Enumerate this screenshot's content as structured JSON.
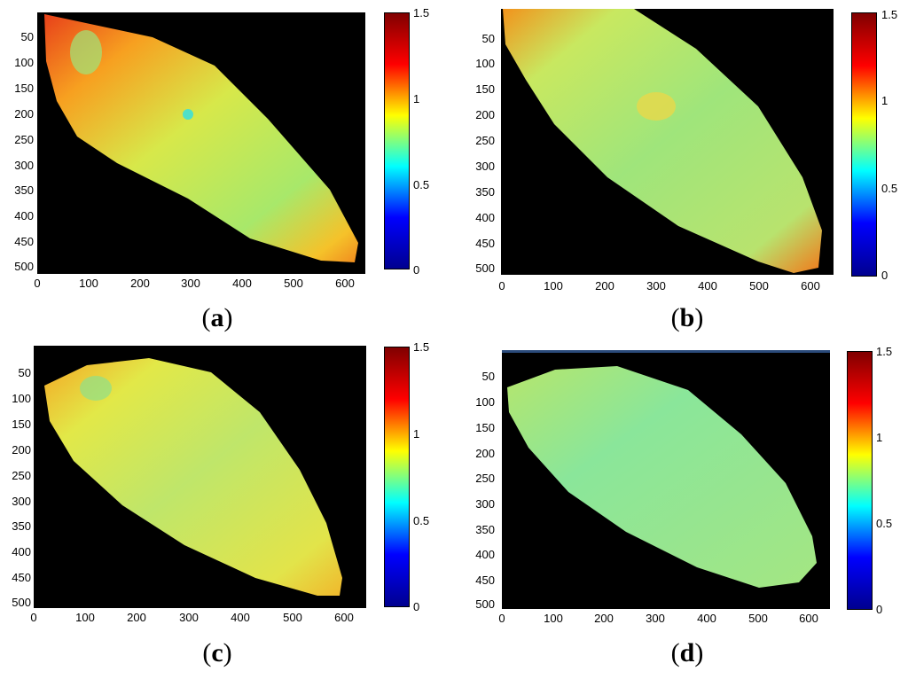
{
  "colorscale": {
    "name": "jet",
    "stops": [
      "#00008f",
      "#0000ff",
      "#00ffff",
      "#ffff00",
      "#ff0000",
      "#800000"
    ],
    "background": "#000000"
  },
  "chart_data": [
    {
      "type": "heatmap",
      "label": "a",
      "caption_open": "(",
      "caption_close": ")",
      "x_ticks": [
        "0",
        "100",
        "200",
        "300",
        "400",
        "500",
        "600"
      ],
      "y_ticks": [
        "50",
        "100",
        "150",
        "200",
        "250",
        "300",
        "350",
        "400",
        "450",
        "500"
      ],
      "colorbar_ticks": [
        "0",
        "0.5",
        "1",
        "1.5"
      ],
      "xlim": [
        0,
        640
      ],
      "ylim": [
        0,
        512
      ],
      "clim": [
        0,
        1.5
      ],
      "dominant_value": 0.95,
      "edge_value": 1.3
    },
    {
      "type": "heatmap",
      "label": "b",
      "caption_open": "(",
      "caption_close": ")",
      "x_ticks": [
        "0",
        "100",
        "200",
        "300",
        "400",
        "500",
        "600"
      ],
      "y_ticks": [
        "50",
        "100",
        "150",
        "200",
        "250",
        "300",
        "350",
        "400",
        "450",
        "500"
      ],
      "colorbar_ticks": [
        "0",
        "0.5",
        "1",
        "1.5"
      ],
      "xlim": [
        0,
        640
      ],
      "ylim": [
        0,
        512
      ],
      "clim": [
        0,
        1.5
      ],
      "dominant_value": 0.8,
      "edge_value": 1.1
    },
    {
      "type": "heatmap",
      "label": "c",
      "caption_open": "(",
      "caption_close": ")",
      "x_ticks": [
        "0",
        "100",
        "200",
        "300",
        "400",
        "500",
        "600"
      ],
      "y_ticks": [
        "50",
        "100",
        "150",
        "200",
        "250",
        "300",
        "350",
        "400",
        "450",
        "500"
      ],
      "colorbar_ticks": [
        "0",
        "0.5",
        "1",
        "1.5"
      ],
      "xlim": [
        0,
        640
      ],
      "ylim": [
        0,
        512
      ],
      "clim": [
        0,
        1.5
      ],
      "dominant_value": 0.85,
      "edge_value": 1.0
    },
    {
      "type": "heatmap",
      "label": "d",
      "caption_open": "(",
      "caption_close": ")",
      "x_ticks": [
        "0",
        "100",
        "200",
        "300",
        "400",
        "500",
        "600"
      ],
      "y_ticks": [
        "50",
        "100",
        "150",
        "200",
        "250",
        "300",
        "350",
        "400",
        "450",
        "500"
      ],
      "colorbar_ticks": [
        "0",
        "0.5",
        "1",
        "1.5"
      ],
      "xlim": [
        0,
        640
      ],
      "ylim": [
        0,
        512
      ],
      "clim": [
        0,
        1.5
      ],
      "dominant_value": 0.72,
      "edge_value": 0.85
    }
  ]
}
